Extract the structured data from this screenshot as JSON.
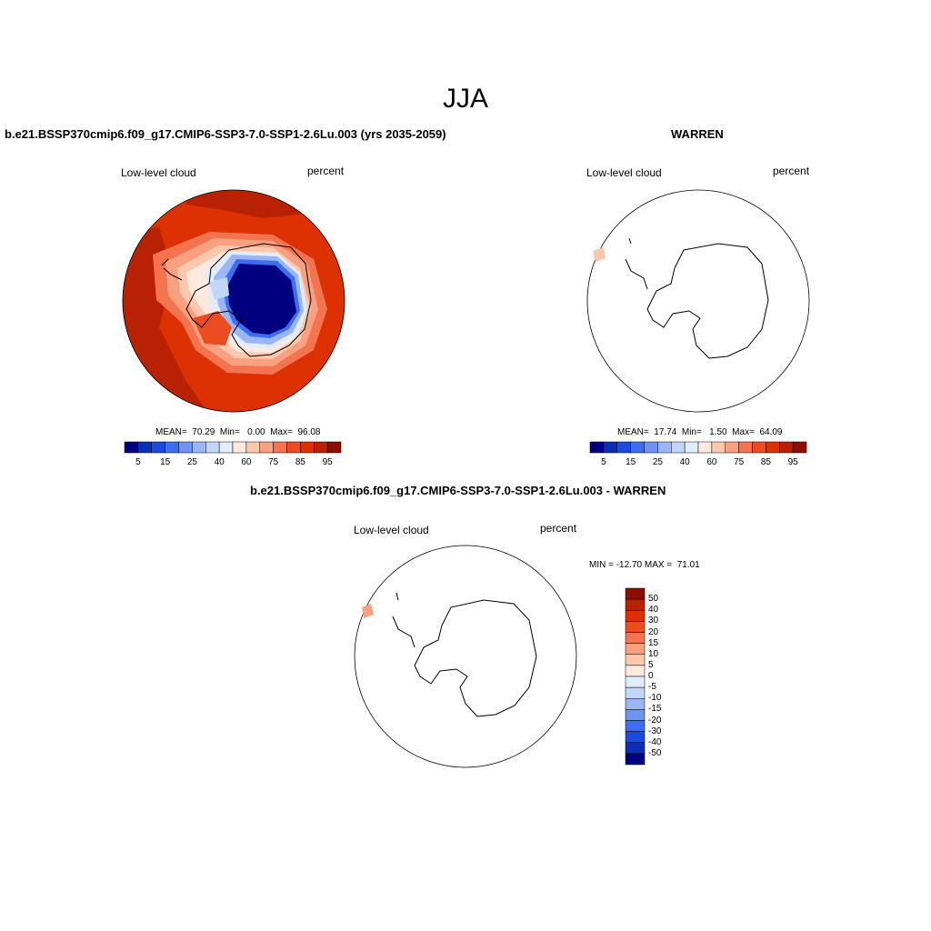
{
  "season": "JJA",
  "panels": {
    "model": {
      "title": "b.e21.BSSP370cmip6.f09_g17.CMIP6-SSP3-7.0-SSP1-2.6Lu.003 (yrs 2035-2059)",
      "variable": "Low-level cloud",
      "units": "percent",
      "stats": "MEAN=  70.29  Min=   0.00  Max=  96.08"
    },
    "obs": {
      "title": "WARREN",
      "variable": "Low-level cloud",
      "units": "percent",
      "stats": "MEAN=  17.74  Min=   1.50  Max=  64.09"
    },
    "diff": {
      "title": "b.e21.BSSP370cmip6.f09_g17.CMIP6-SSP3-7.0-SSP1-2.6Lu.003 - WARREN",
      "variable": "Low-level cloud",
      "units": "percent",
      "stats": "MIN = -12.70 MAX =  71.01"
    }
  },
  "colorbar_main": {
    "labels": [
      "5",
      "15",
      "25",
      "40",
      "60",
      "75",
      "85",
      "95"
    ],
    "colors": [
      "#000080",
      "#0a2eb4",
      "#1a4be0",
      "#3c6ef0",
      "#6e94f2",
      "#9ab6f6",
      "#c4d6f8",
      "#e3ecfa",
      "#fde9de",
      "#fbc8ad",
      "#f8a07f",
      "#f47450",
      "#ed4c20",
      "#dd3103",
      "#b82203",
      "#8c0e03"
    ]
  },
  "colorbar_diff": {
    "labels": [
      "50",
      "40",
      "30",
      "20",
      "15",
      "10",
      "5",
      "0",
      "-5",
      "-10",
      "-15",
      "-20",
      "-30",
      "-40",
      "-50"
    ],
    "colors": [
      "#8c0e03",
      "#b82203",
      "#dd3103",
      "#ed4c20",
      "#f47450",
      "#f8a07f",
      "#fbc8ad",
      "#fde9de",
      "#e3ecfa",
      "#c4d6f8",
      "#9ab6f6",
      "#6e94f2",
      "#3c6ef0",
      "#1a4be0",
      "#0a2eb4",
      "#000080"
    ]
  }
}
